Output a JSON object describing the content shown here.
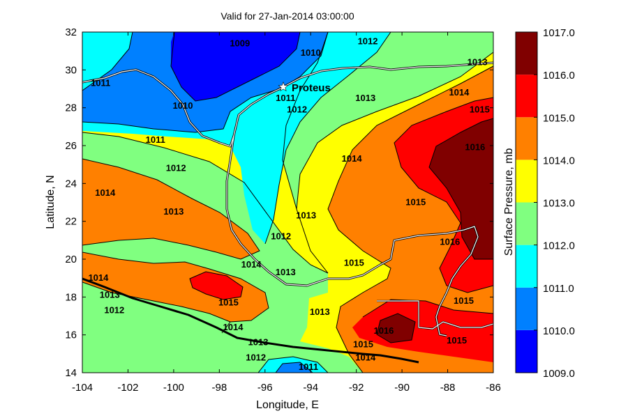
{
  "chart_data": {
    "type": "heatmap",
    "subtype": "filled-contour-map",
    "title": "Valid for 27-Jan-2014 03:00:00",
    "xlabel": "Longitude, E",
    "ylabel": "Latitude, N",
    "xlim": [
      -104,
      -86
    ],
    "ylim": [
      14,
      32
    ],
    "x_ticks": [
      -104,
      -102,
      -100,
      -98,
      -96,
      -94,
      -92,
      -90,
      -88,
      -86
    ],
    "y_ticks": [
      14,
      16,
      18,
      20,
      22,
      24,
      26,
      28,
      30,
      32
    ],
    "grid": false,
    "colorbar": {
      "label": "Surface Pressure, mb",
      "placement": "right",
      "ticks": [
        "1009.0",
        "1010.0",
        "1011.0",
        "1012.0",
        "1013.0",
        "1014.0",
        "1015.0",
        "1016.0",
        "1017.0"
      ],
      "levels": [
        {
          "range": [
            1009,
            1010
          ],
          "color": "#0000ff"
        },
        {
          "range": [
            1010,
            1011
          ],
          "color": "#0080ff"
        },
        {
          "range": [
            1011,
            1012
          ],
          "color": "#00ffff"
        },
        {
          "range": [
            1012,
            1013
          ],
          "color": "#80ff80"
        },
        {
          "range": [
            1013,
            1014
          ],
          "color": "#ffff00"
        },
        {
          "range": [
            1014,
            1015
          ],
          "color": "#ff8000"
        },
        {
          "range": [
            1015,
            1016
          ],
          "color": "#ff0000"
        },
        {
          "range": [
            1016,
            1017
          ],
          "color": "#800000"
        }
      ]
    },
    "contour_labels": [
      {
        "value": "1009",
        "lon": -97.1,
        "lat": 31.4
      },
      {
        "value": "1010",
        "lon": -94.0,
        "lat": 30.9
      },
      {
        "value": "1010",
        "lon": -99.6,
        "lat": 28.1
      },
      {
        "value": "1011",
        "lon": -103.2,
        "lat": 29.3
      },
      {
        "value": "1011",
        "lon": -95.1,
        "lat": 28.5
      },
      {
        "value": "1011",
        "lon": -100.8,
        "lat": 26.3
      },
      {
        "value": "1011",
        "lon": -94.1,
        "lat": 14.3
      },
      {
        "value": "1012",
        "lon": -91.5,
        "lat": 31.5
      },
      {
        "value": "1012",
        "lon": -94.6,
        "lat": 27.9
      },
      {
        "value": "1012",
        "lon": -99.9,
        "lat": 24.8
      },
      {
        "value": "1012",
        "lon": -95.3,
        "lat": 21.2
      },
      {
        "value": "1012",
        "lon": -102.6,
        "lat": 17.3
      },
      {
        "value": "1012",
        "lon": -96.4,
        "lat": 14.8
      },
      {
        "value": "1013",
        "lon": -86.7,
        "lat": 30.4
      },
      {
        "value": "1013",
        "lon": -91.6,
        "lat": 28.5
      },
      {
        "value": "1013",
        "lon": -100.0,
        "lat": 22.5
      },
      {
        "value": "1013",
        "lon": -94.2,
        "lat": 22.3
      },
      {
        "value": "1013",
        "lon": -95.1,
        "lat": 19.3
      },
      {
        "value": "1013",
        "lon": -102.8,
        "lat": 18.1
      },
      {
        "value": "1013",
        "lon": -93.6,
        "lat": 17.2
      },
      {
        "value": "1013",
        "lon": -96.3,
        "lat": 15.6
      },
      {
        "value": "1014",
        "lon": -87.5,
        "lat": 28.8
      },
      {
        "value": "1014",
        "lon": -92.2,
        "lat": 25.3
      },
      {
        "value": "1014",
        "lon": -103.0,
        "lat": 23.5
      },
      {
        "value": "1014",
        "lon": -96.6,
        "lat": 19.7
      },
      {
        "value": "1014",
        "lon": -103.3,
        "lat": 19.0
      },
      {
        "value": "1014",
        "lon": -97.4,
        "lat": 16.4
      },
      {
        "value": "1014",
        "lon": -91.6,
        "lat": 14.8
      },
      {
        "value": "1015",
        "lon": -86.6,
        "lat": 27.9
      },
      {
        "value": "1015",
        "lon": -89.4,
        "lat": 23.0
      },
      {
        "value": "1015",
        "lon": -92.1,
        "lat": 19.8
      },
      {
        "value": "1015",
        "lon": -97.6,
        "lat": 17.7
      },
      {
        "value": "1015",
        "lon": -87.3,
        "lat": 17.8
      },
      {
        "value": "1015",
        "lon": -91.7,
        "lat": 15.5
      },
      {
        "value": "1015",
        "lon": -87.6,
        "lat": 15.7
      },
      {
        "value": "1016",
        "lon": -86.8,
        "lat": 25.9
      },
      {
        "value": "1016",
        "lon": -87.9,
        "lat": 20.9
      },
      {
        "value": "1016",
        "lon": -90.8,
        "lat": 16.2
      }
    ],
    "station": {
      "name": "Proteus",
      "lon": -95.2,
      "lat": 29.1
    }
  }
}
